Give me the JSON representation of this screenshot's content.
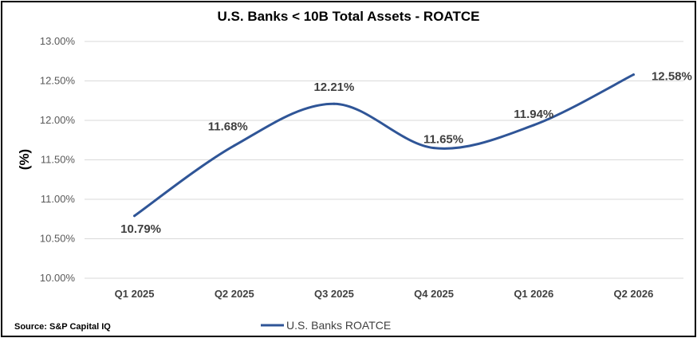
{
  "chart_data": {
    "type": "line",
    "title": "U.S. Banks < 10B Total Assets - ROATCE",
    "ylabel": "(%)",
    "xlabel": "",
    "categories": [
      "Q1 2025",
      "Q2 2025",
      "Q3 2025",
      "Q4 2025",
      "Q1 2026",
      "Q2 2026"
    ],
    "series": [
      {
        "name": "U.S. Banks ROATCE",
        "values": [
          10.79,
          11.68,
          12.21,
          11.65,
          11.94,
          12.58
        ],
        "labels": [
          "10.79%",
          "11.68%",
          "12.21%",
          "11.65%",
          "11.94%",
          "12.58%"
        ],
        "color": "#2f5597"
      }
    ],
    "ylim": [
      10.0,
      13.0
    ],
    "yticks": [
      10.0,
      10.5,
      11.0,
      11.5,
      12.0,
      12.5,
      13.0
    ],
    "ytick_labels": [
      "10.00%",
      "10.50%",
      "11.00%",
      "11.50%",
      "12.00%",
      "12.50%",
      "13.00%"
    ],
    "grid": true,
    "smooth": true,
    "legend_position": "bottom",
    "source": "Source: S&P Capital IQ"
  }
}
